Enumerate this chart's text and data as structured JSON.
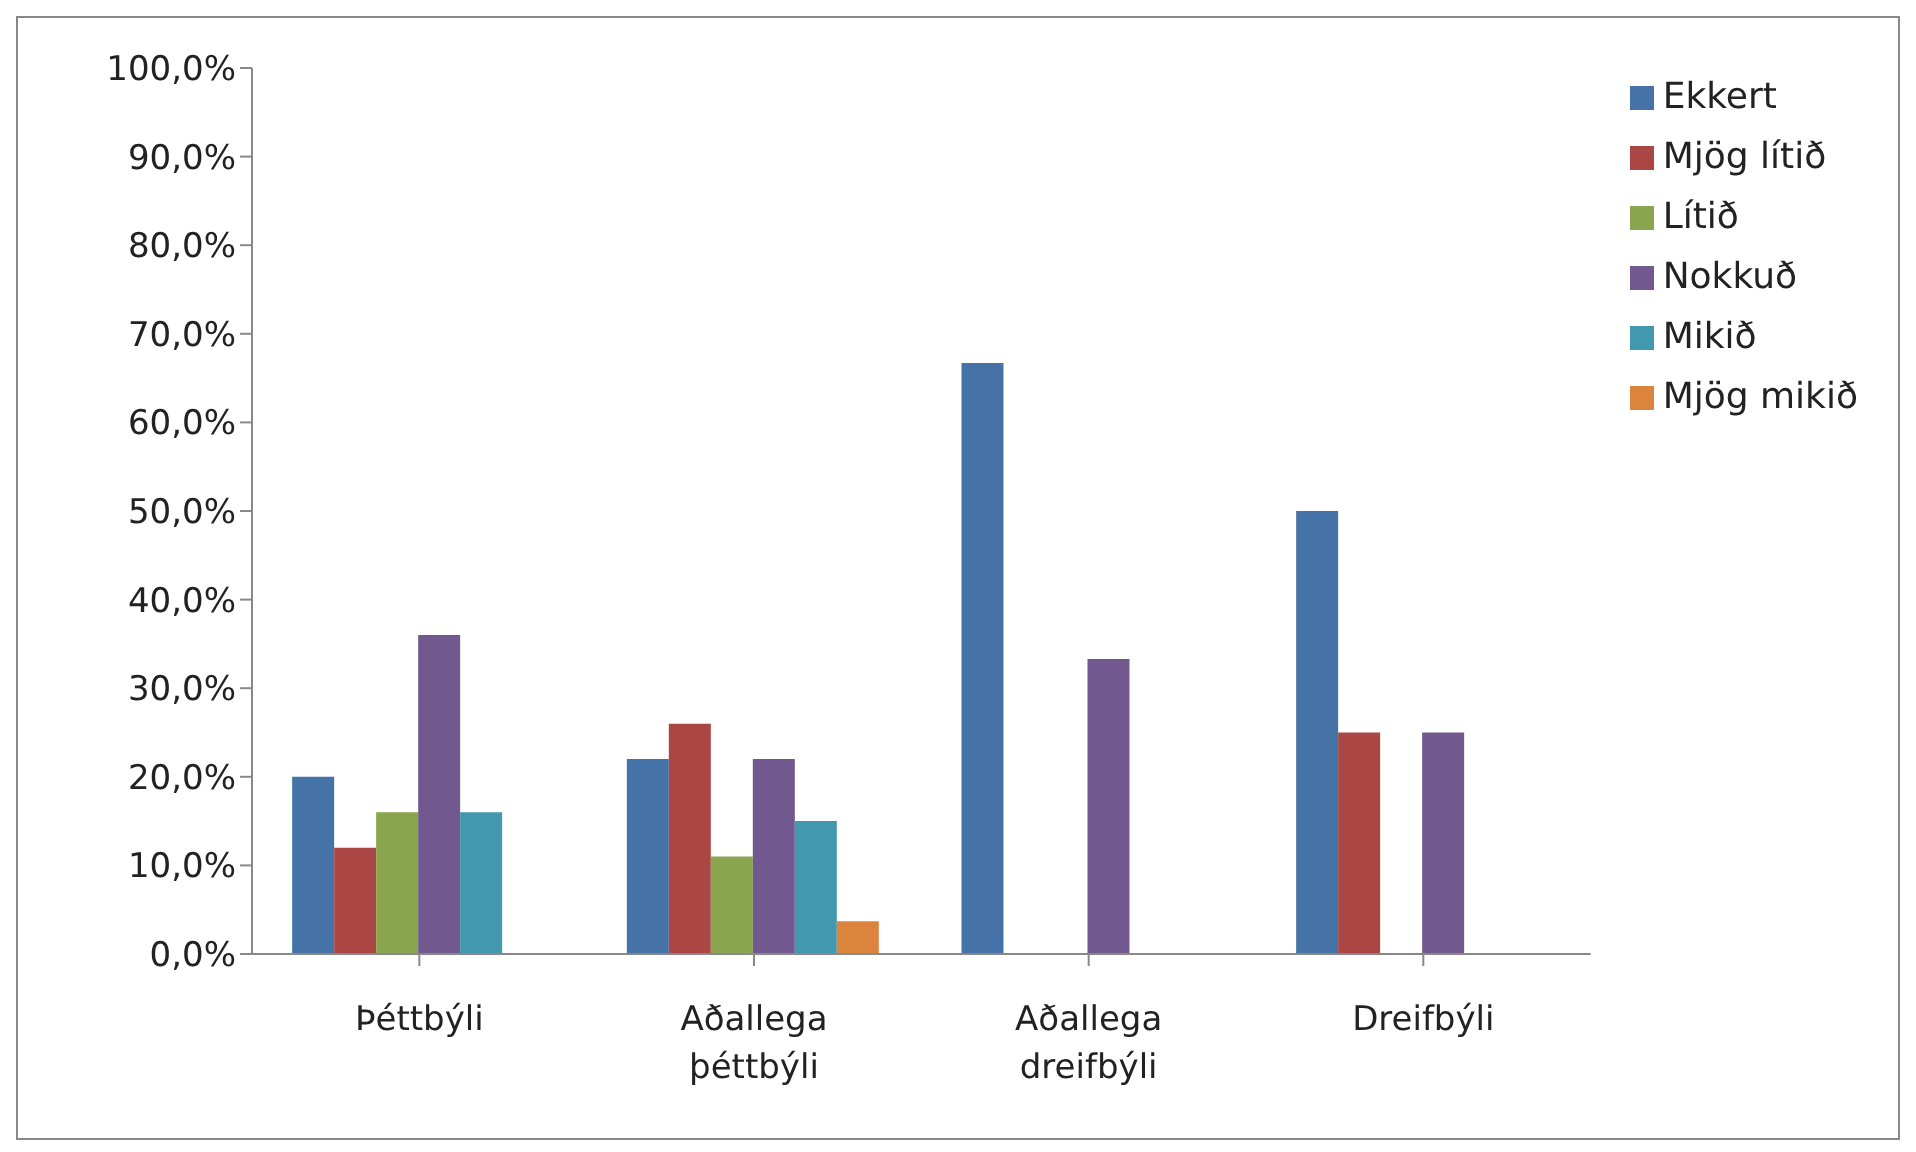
{
  "chart_data": {
    "type": "bar",
    "categories": [
      "Þéttbýli",
      "Aðallega þéttbýli",
      "Aðallega dreifbýli",
      "Dreifbýli"
    ],
    "series": [
      {
        "name": "Ekkert",
        "color": "#4572a7",
        "values": [
          20,
          22,
          66.7,
          50
        ]
      },
      {
        "name": "Mjög lítið",
        "color": "#aa4643",
        "values": [
          12,
          26,
          null,
          25
        ]
      },
      {
        "name": "Lítið",
        "color": "#89a54e",
        "values": [
          16,
          11,
          null,
          null
        ]
      },
      {
        "name": "Nokkuð",
        "color": "#71588f",
        "values": [
          36,
          22,
          33.3,
          25
        ]
      },
      {
        "name": "Mikið",
        "color": "#4198af",
        "values": [
          16,
          15,
          null,
          null
        ]
      },
      {
        "name": "Mjög mikið",
        "color": "#db843d",
        "values": [
          null,
          3.7,
          null,
          null
        ]
      }
    ],
    "ylim": [
      0,
      100
    ],
    "yticks": [
      {
        "value": 0,
        "label": "0,0%"
      },
      {
        "value": 10,
        "label": "10,0%"
      },
      {
        "value": 20,
        "label": "20,0%"
      },
      {
        "value": 30,
        "label": "30,0%"
      },
      {
        "value": 40,
        "label": "40,0%"
      },
      {
        "value": 50,
        "label": "50,0%"
      },
      {
        "value": 60,
        "label": "60,0%"
      },
      {
        "value": 70,
        "label": "70,0%"
      },
      {
        "value": 80,
        "label": "80,0%"
      },
      {
        "value": 90,
        "label": "90,0%"
      },
      {
        "value": 100,
        "label": "100,0%"
      }
    ],
    "grid": false,
    "legend": "top right"
  }
}
